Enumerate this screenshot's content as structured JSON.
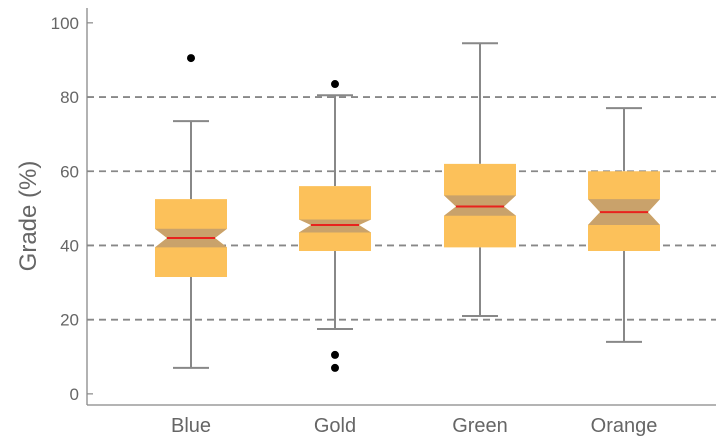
{
  "chart_data": {
    "type": "box",
    "notched": true,
    "ylabel": "Grade (%)",
    "xlabel": "",
    "ylim": [
      -3,
      104
    ],
    "yticks": [
      0,
      20,
      40,
      60,
      80,
      100
    ],
    "grid": "horizontal dashed at 20, 40, 60, 80",
    "colors": {
      "box": "#fcc15a",
      "notch": "#c9a26b",
      "median": "#e8231d",
      "whisker": "#888888",
      "outlier": "#000000",
      "grid": "#888888",
      "frame": "#888888"
    },
    "categories": [
      "Blue",
      "Gold",
      "Green",
      "Orange"
    ],
    "series": [
      {
        "category": "Blue",
        "min": 7,
        "q1": 31.5,
        "median": 42,
        "q3": 52.5,
        "max": 73.5,
        "notch": [
          39.5,
          44.5
        ],
        "outliers": [
          90.5
        ]
      },
      {
        "category": "Gold",
        "min": 17.5,
        "q1": 38.5,
        "median": 45.5,
        "q3": 56,
        "max": 80.5,
        "notch": [
          43.5,
          47
        ],
        "outliers": [
          83.5,
          10.5,
          7
        ]
      },
      {
        "category": "Green",
        "min": 21,
        "q1": 39.5,
        "median": 50.5,
        "q3": 62,
        "max": 94.5,
        "notch": [
          48,
          53.5
        ],
        "outliers": []
      },
      {
        "category": "Orange",
        "min": 14,
        "q1": 38.5,
        "median": 49,
        "q3": 60,
        "max": 77,
        "notch": [
          45.5,
          52.5
        ],
        "outliers": []
      }
    ]
  }
}
